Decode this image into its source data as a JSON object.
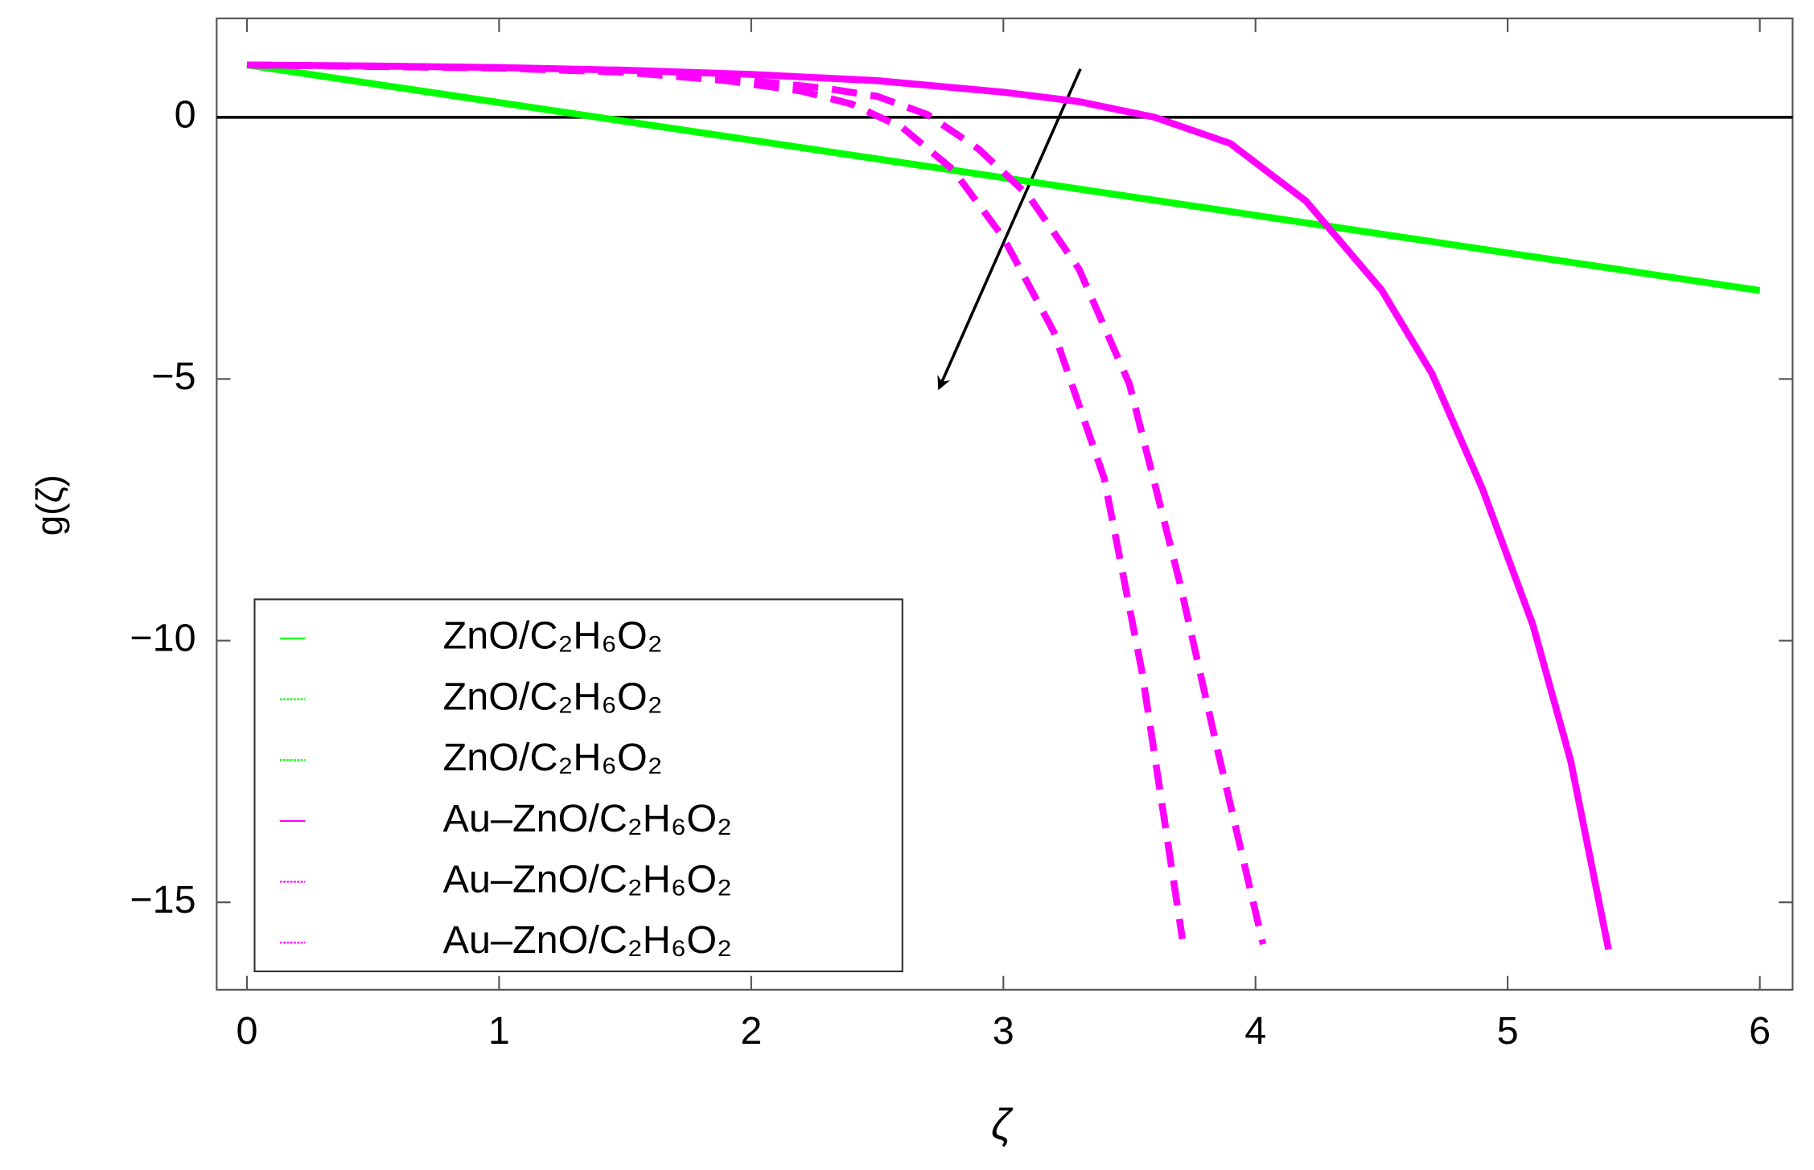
{
  "chart_data": {
    "type": "line",
    "x_label": "ζ",
    "y_label": "g(ζ)",
    "xlim": [
      -0.12,
      6.13
    ],
    "ylim": [
      -16.67,
      1.89
    ],
    "xticks": [
      0,
      1,
      2,
      3,
      4,
      5,
      6
    ],
    "yticks": [
      {
        "value": -15,
        "label": "−15"
      },
      {
        "value": -10,
        "label": "−10"
      },
      {
        "value": -5,
        "label": "−5"
      },
      0
    ],
    "legend": "lower left",
    "series": [
      {
        "name": "ZnO/C₂H₆O₂",
        "color": "#00ff00",
        "dash": "solid",
        "x": [
          0,
          6
        ],
        "values": [
          1,
          -3.31
        ]
      },
      {
        "name": "ZnO/C₂H₆O₂",
        "color": "#00ff00",
        "dash": "dotted",
        "x": [
          0,
          6
        ],
        "values": [
          1,
          -3.31
        ]
      },
      {
        "name": "ZnO/C₂H₆O₂",
        "color": "#00ff00",
        "dash": "dotted",
        "x": [
          0,
          6
        ],
        "values": [
          1,
          -3.31
        ]
      },
      {
        "name": "Au–ZnO/C₂H₆O₂",
        "color": "#ff00ff",
        "dash": "solid",
        "x": [
          0,
          0.5,
          1,
          1.5,
          2,
          2.5,
          3,
          3.3,
          3.6,
          3.9,
          4.2,
          4.5,
          4.7,
          4.9,
          5.1,
          5.25,
          5.4
        ],
        "values": [
          1,
          0.98,
          0.95,
          0.9,
          0.82,
          0.7,
          0.48,
          0.3,
          0,
          -0.5,
          -1.6,
          -3.3,
          -4.9,
          -7.1,
          -9.7,
          -12.3,
          -15.9
        ]
      },
      {
        "name": "Au–ZnO/C₂H₆O₂",
        "color": "#ff00ff",
        "dash": "dashed",
        "x": [
          0,
          1,
          1.5,
          2,
          2.3,
          2.5,
          2.7,
          2.9,
          3.1,
          3.3,
          3.5,
          3.7,
          3.85,
          4.03
        ],
        "values": [
          1,
          0.95,
          0.88,
          0.7,
          0.55,
          0.4,
          0.05,
          -0.6,
          -1.5,
          -2.9,
          -5.1,
          -8.9,
          -12.1,
          -15.8
        ]
      },
      {
        "name": "Au–ZnO/C₂H₆O₂",
        "color": "#ff00ff",
        "dash": "dashed",
        "x": [
          0,
          1,
          1.5,
          1.9,
          2.2,
          2.4,
          2.6,
          2.8,
          3.0,
          3.2,
          3.4,
          3.55,
          3.71
        ],
        "values": [
          1,
          0.94,
          0.86,
          0.7,
          0.5,
          0.25,
          -0.2,
          -1.0,
          -2.3,
          -4.1,
          -6.9,
          -10.6,
          -15.7
        ]
      }
    ]
  }
}
